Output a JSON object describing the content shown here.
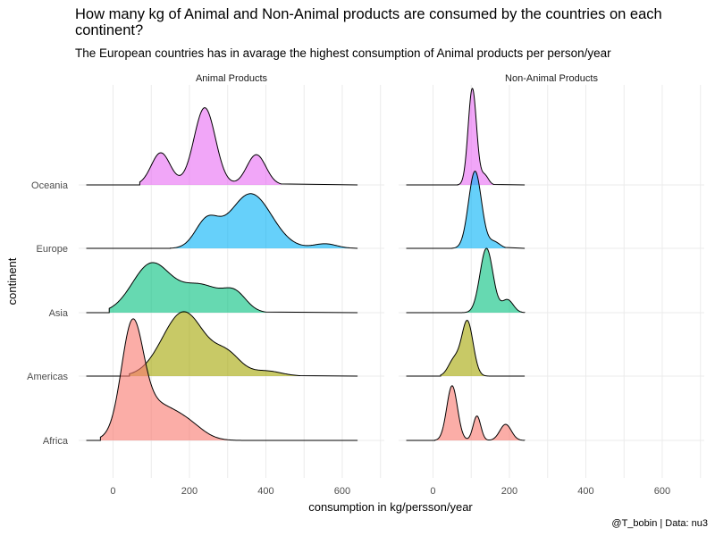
{
  "title": "How many kg of Animal and Non-Animal products are consumed by the countries on each continent?",
  "subtitle": "The European countries has in avarage the highest consumption of Animal products per person/year",
  "caption": "@T_bobin | Data: nu3",
  "chart_data": {
    "type": "ridgeline",
    "xlabel": "consumption in kg/persson/year",
    "ylabel": "continent",
    "xlim": [
      -90,
      710
    ],
    "xticks": [
      0,
      200,
      400,
      600
    ],
    "categories": [
      "Africa",
      "Americas",
      "Asia",
      "Europe",
      "Oceania"
    ],
    "colors": {
      "Africa": "#F8766D",
      "Americas": "#A3A500",
      "Asia": "#00BF7D",
      "Europe": "#00B0F6",
      "Oceania": "#E76BF3"
    },
    "panels": [
      {
        "label": "Animal Products",
        "series": [
          {
            "name": "Africa",
            "x_range": [
              -33,
              440
            ],
            "peaks": [
              {
                "x": 50,
                "h": 1.55,
                "w": 28
              },
              {
                "x": 110,
                "h": 0.55,
                "w": 60
              },
              {
                "x": 200,
                "h": 0.15,
                "w": 40
              }
            ]
          },
          {
            "name": "Americas",
            "x_range": [
              43,
              490
            ],
            "peaks": [
              {
                "x": 185,
                "h": 1.0,
                "w": 55
              },
              {
                "x": 300,
                "h": 0.3,
                "w": 35
              },
              {
                "x": 400,
                "h": 0.08,
                "w": 40
              }
            ]
          },
          {
            "name": "Asia",
            "x_range": [
              -10,
              400
            ],
            "peaks": [
              {
                "x": 100,
                "h": 0.75,
                "w": 50
              },
              {
                "x": 230,
                "h": 0.42,
                "w": 55
              },
              {
                "x": 320,
                "h": 0.25,
                "w": 30
              }
            ]
          },
          {
            "name": "Europe",
            "x_range": [
              150,
              620
            ],
            "peaks": [
              {
                "x": 245,
                "h": 0.4,
                "w": 30
              },
              {
                "x": 360,
                "h": 0.85,
                "w": 55
              },
              {
                "x": 555,
                "h": 0.07,
                "w": 30
              }
            ]
          },
          {
            "name": "Oceania",
            "x_range": [
              70,
              440
            ],
            "peaks": [
              {
                "x": 125,
                "h": 0.5,
                "w": 25
              },
              {
                "x": 240,
                "h": 1.2,
                "w": 28
              },
              {
                "x": 375,
                "h": 0.47,
                "w": 25
              }
            ]
          }
        ]
      },
      {
        "label": "Non-Animal Products",
        "series": [
          {
            "name": "Africa",
            "x_range": [
              5,
              240
            ],
            "peaks": [
              {
                "x": 50,
                "h": 0.85,
                "w": 14
              },
              {
                "x": 115,
                "h": 0.38,
                "w": 10
              },
              {
                "x": 190,
                "h": 0.25,
                "w": 15
              }
            ]
          },
          {
            "name": "Americas",
            "x_range": [
              20,
              160
            ],
            "peaks": [
              {
                "x": 90,
                "h": 0.85,
                "w": 15
              },
              {
                "x": 55,
                "h": 0.25,
                "w": 15
              }
            ]
          },
          {
            "name": "Asia",
            "x_range": [
              75,
              240
            ],
            "peaks": [
              {
                "x": 140,
                "h": 1.0,
                "w": 17
              },
              {
                "x": 195,
                "h": 0.2,
                "w": 15
              }
            ]
          },
          {
            "name": "Europe",
            "x_range": [
              50,
              190
            ],
            "peaks": [
              {
                "x": 110,
                "h": 1.2,
                "w": 17
              },
              {
                "x": 160,
                "h": 0.1,
                "w": 15
              }
            ]
          },
          {
            "name": "Oceania",
            "x_range": [
              65,
              160
            ],
            "peaks": [
              {
                "x": 103,
                "h": 1.5,
                "w": 11
              },
              {
                "x": 135,
                "h": 0.15,
                "w": 10
              }
            ]
          }
        ]
      }
    ]
  }
}
